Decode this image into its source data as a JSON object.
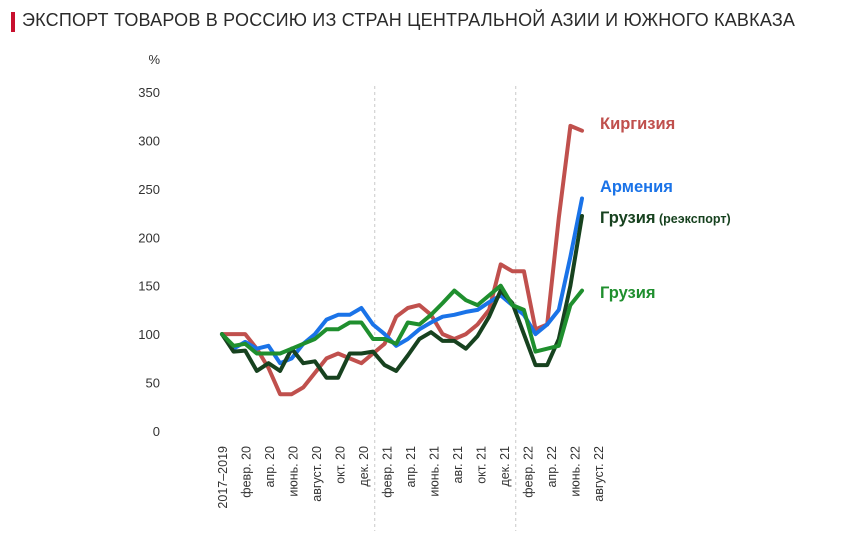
{
  "title": "ЭКСПОРТ ТОВАРОВ В РОССИЮ ИЗ СТРАН ЦЕНТРАЛЬНОЙ АЗИИ И ЮЖНОГО КАВКАЗА",
  "accent_color": "#c8102e",
  "chart_data": {
    "type": "line",
    "ylabel": "%",
    "ylim": [
      0,
      350
    ],
    "yticks": [
      0,
      50,
      100,
      150,
      200,
      250,
      300,
      350
    ],
    "x_labels": [
      "2017–2019",
      "февр. 20",
      "апр. 20",
      "июнь. 20",
      "август. 20",
      "окт. 20",
      "дек. 20",
      "февр. 21",
      "апр. 21",
      "июнь. 21",
      "авг. 21",
      "окт. 21",
      "дек. 21",
      "февр. 22",
      "апр. 22",
      "июнь. 22",
      "август. 22"
    ],
    "grid": false,
    "separators_after": [
      "дек. 20",
      "дек. 21"
    ],
    "series": [
      {
        "name": "Киргизия",
        "name_extra": "",
        "color": "#c0504d",
        "values": [
          100,
          100,
          100,
          85,
          65,
          38,
          38,
          45,
          60,
          75,
          80,
          75,
          70,
          80,
          90,
          118,
          127,
          130,
          120,
          100,
          95,
          100,
          110,
          125,
          172,
          165,
          165,
          105,
          110,
          220,
          315,
          310
        ]
      },
      {
        "name": "Армения",
        "name_extra": "",
        "color": "#1a73e8",
        "values": [
          100,
          85,
          92,
          85,
          88,
          70,
          75,
          90,
          100,
          115,
          120,
          120,
          127,
          110,
          100,
          88,
          95,
          105,
          112,
          118,
          120,
          123,
          125,
          133,
          140,
          130,
          120,
          100,
          110,
          125,
          180,
          240
        ]
      },
      {
        "name": "Грузия",
        "name_extra": "(реэкспорт)",
        "color": "#17421f",
        "values": [
          100,
          82,
          83,
          62,
          70,
          62,
          85,
          70,
          72,
          55,
          55,
          80,
          80,
          82,
          68,
          62,
          78,
          95,
          102,
          93,
          93,
          85,
          98,
          118,
          145,
          132,
          100,
          68,
          68,
          95,
          150,
          222
        ]
      },
      {
        "name": "Грузия",
        "name_extra": "",
        "color": "#1f8f2e",
        "values": [
          100,
          88,
          90,
          80,
          80,
          80,
          85,
          90,
          95,
          105,
          105,
          112,
          112,
          95,
          95,
          90,
          112,
          110,
          120,
          132,
          145,
          135,
          130,
          140,
          150,
          130,
          125,
          82,
          85,
          88,
          130,
          145
        ]
      }
    ]
  }
}
